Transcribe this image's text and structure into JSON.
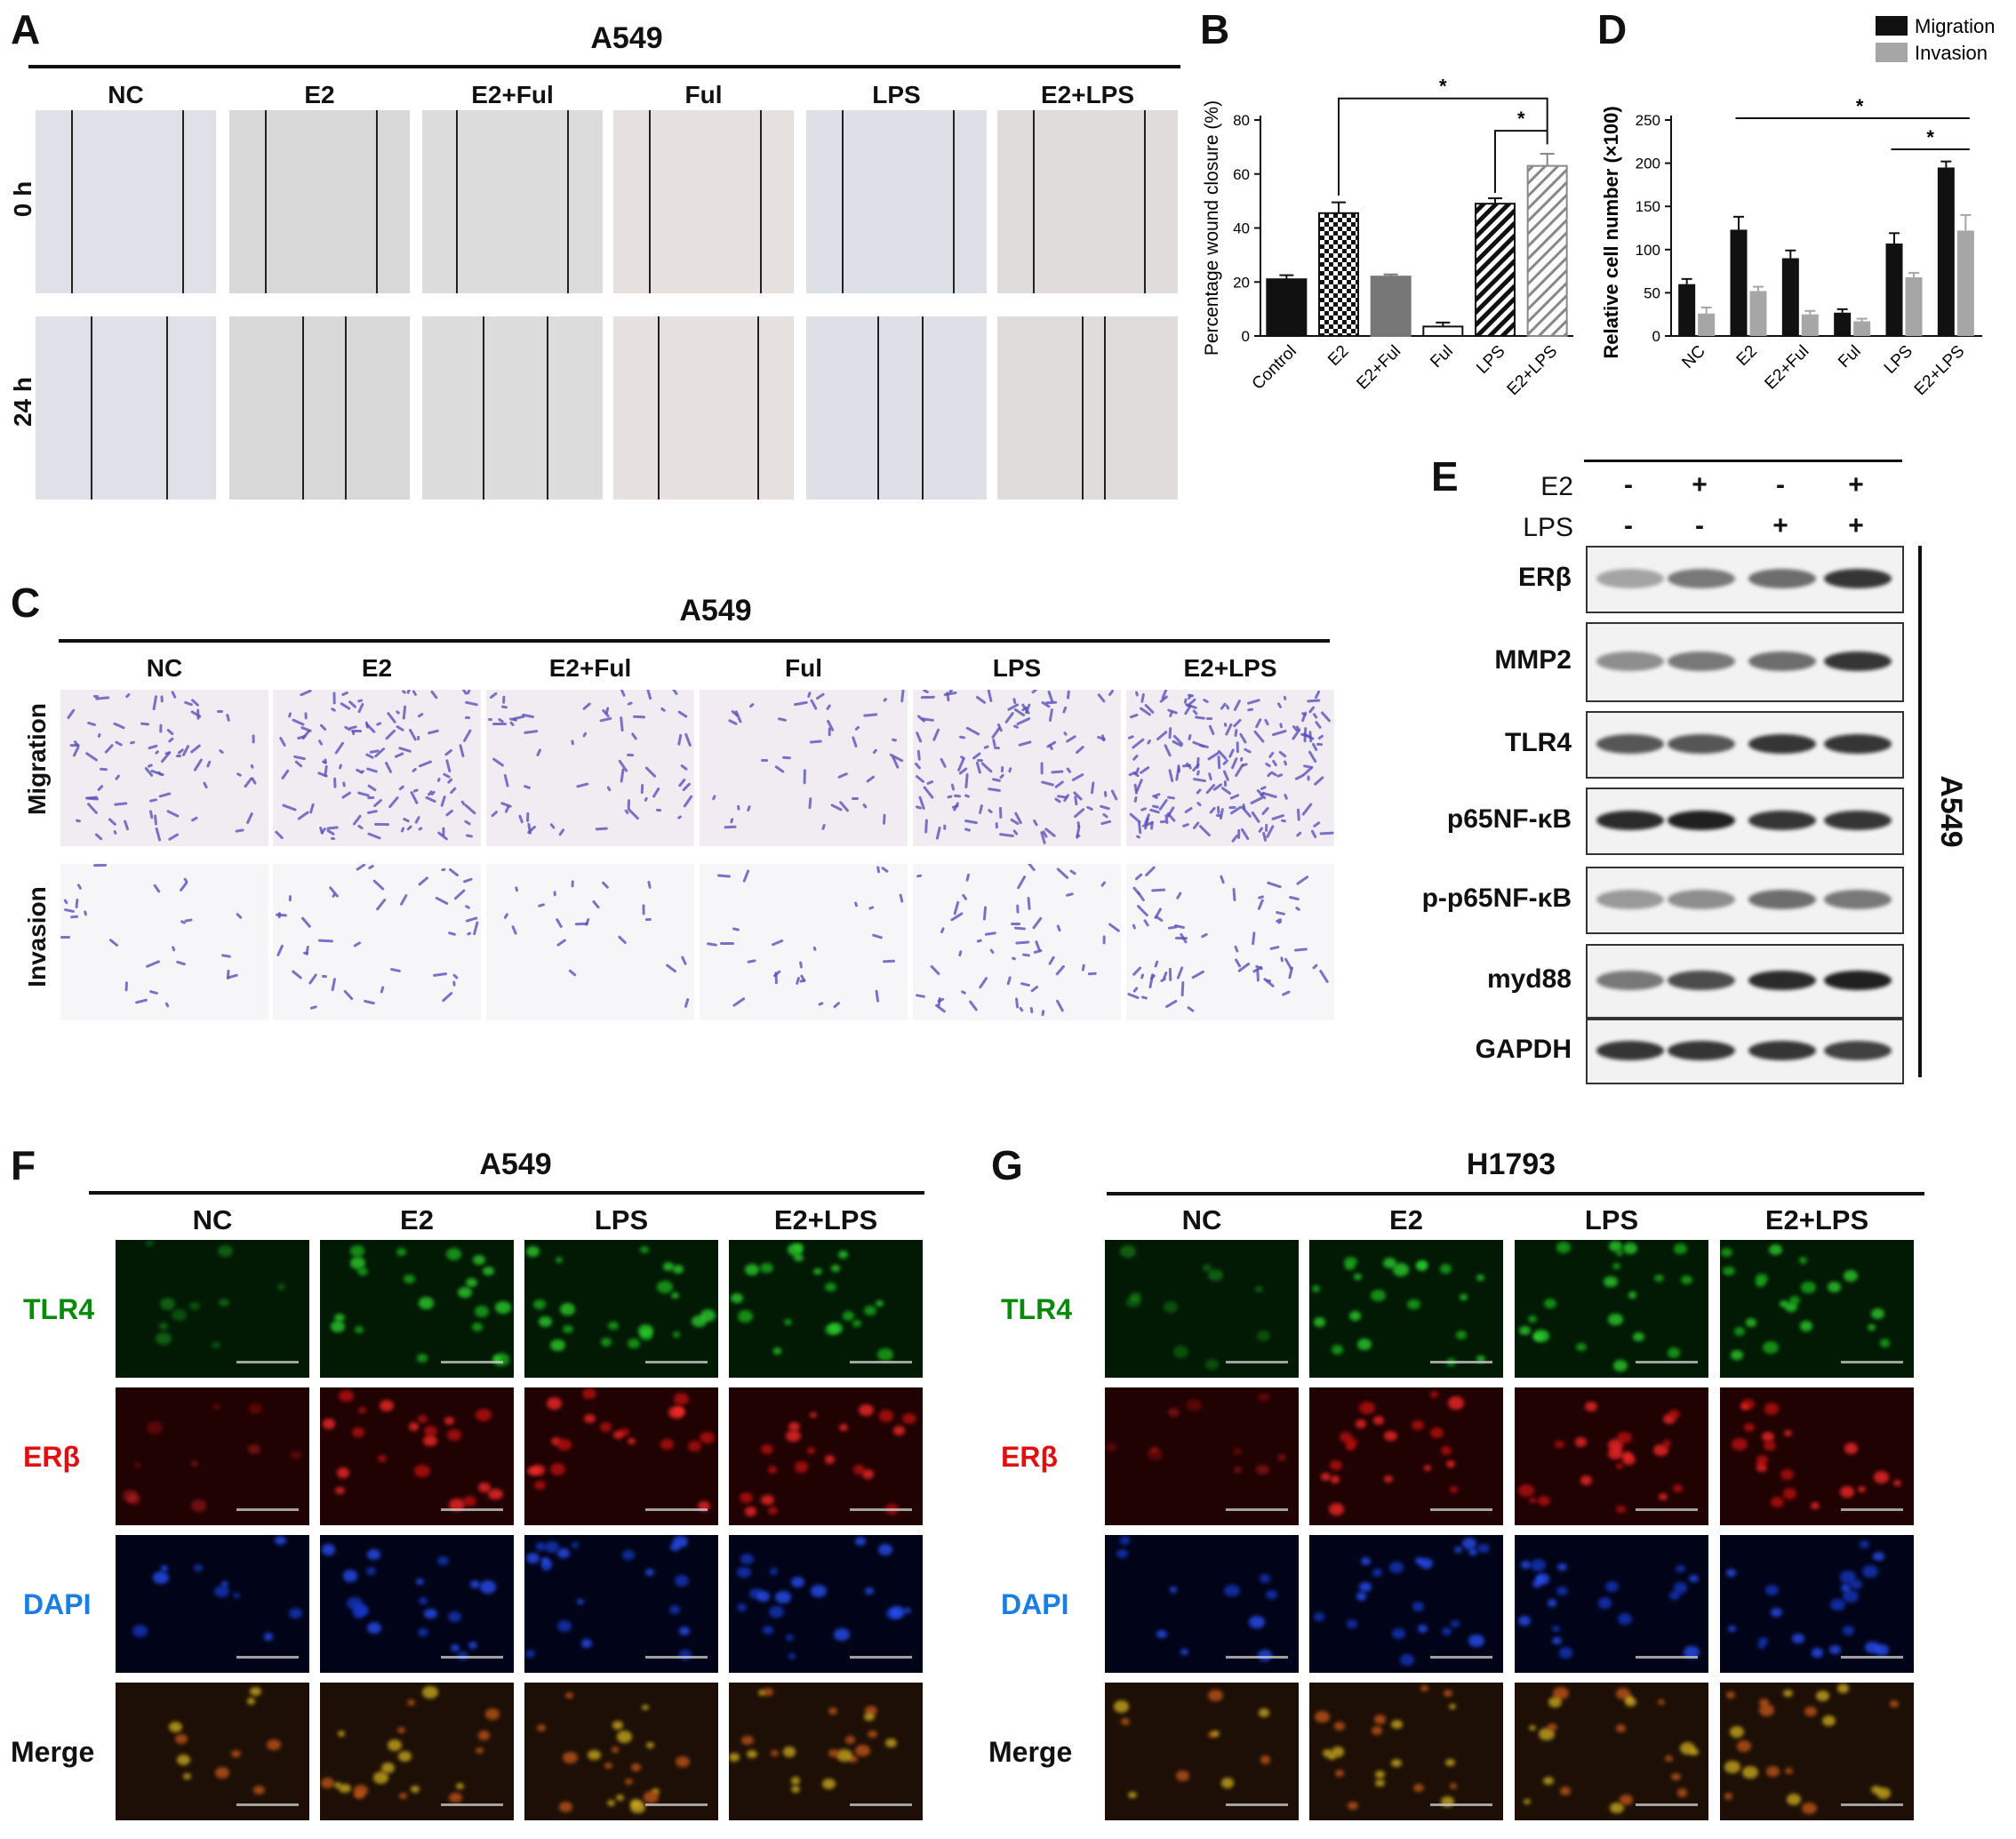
{
  "panel_a": {
    "label": "A",
    "title": "A549",
    "columns": [
      "NC",
      "E2",
      "E2+Ful",
      "Ful",
      "LPS",
      "E2+LPS"
    ],
    "rows": [
      "0 h",
      "24 h"
    ]
  },
  "panel_b": {
    "label": "B",
    "sig": [
      "*",
      "*"
    ],
    "colors": {
      "black": "#111111",
      "grey": "#777777"
    }
  },
  "panel_c": {
    "label": "C",
    "title": "A549",
    "columns": [
      "NC",
      "E2",
      "E2+Ful",
      "Ful",
      "LPS",
      "E2+LPS"
    ],
    "rows": [
      "Migration",
      "Invasion"
    ]
  },
  "panel_d": {
    "label": "D",
    "sig": [
      "*",
      "*"
    ],
    "colors": {
      "migration": "#111111",
      "invasion": "#a6a6a6"
    }
  },
  "panel_e": {
    "label": "E",
    "treatments": [
      {
        "name": "E2",
        "signs": [
          "-",
          "+",
          "-",
          "+"
        ]
      },
      {
        "name": "LPS",
        "signs": [
          "-",
          "-",
          "+",
          "+"
        ]
      }
    ],
    "proteins": [
      "ERβ",
      "MMP2",
      "TLR4",
      "p65NF-κB",
      "p-p65NF-κB",
      "myd88",
      "GAPDH"
    ],
    "cell_line": "A549"
  },
  "panel_f": {
    "label": "F",
    "title": "A549",
    "columns": [
      "NC",
      "E2",
      "LPS",
      "E2+LPS"
    ],
    "rows": [
      "TLR4",
      "ERβ",
      "DAPI",
      "Merge"
    ]
  },
  "panel_g": {
    "label": "G",
    "title": "H1793",
    "columns": [
      "NC",
      "E2",
      "LPS",
      "E2+LPS"
    ],
    "rows": [
      "TLR4",
      "ERβ",
      "DAPI",
      "Merge"
    ]
  },
  "stain_colors": {
    "TLR4": "#0a8a0a",
    "ERβ": "#e01010",
    "DAPI": "#1a7fe0",
    "Merge": "#111111"
  },
  "chart_data": [
    {
      "type": "bar",
      "categories": [
        "Control",
        "E2",
        "E2+Ful",
        "Ful",
        "LPS",
        "E2+LPS"
      ],
      "values": [
        21,
        45.5,
        22,
        3.5,
        49,
        63
      ],
      "errors": [
        1.5,
        4,
        0.8,
        1.5,
        2,
        4.5
      ],
      "ylabel": "Percentage wound closure (%)",
      "ylim": [
        0,
        80
      ],
      "yticks": [
        0,
        20,
        40,
        60,
        80
      ]
    },
    {
      "type": "bar",
      "categories": [
        "NC",
        "E2",
        "E2+Ful",
        "Ful",
        "LPS",
        "E2+LPS"
      ],
      "series": [
        {
          "name": "Migration",
          "values": [
            60,
            123,
            90,
            27,
            107,
            195
          ],
          "errors": [
            6,
            15,
            9,
            4,
            12,
            7
          ]
        },
        {
          "name": "Invasion",
          "values": [
            26,
            52,
            25,
            17,
            68,
            122
          ],
          "errors": [
            7,
            5,
            4,
            3,
            5,
            18
          ]
        }
      ],
      "ylabel": "Relative cell number (×100)",
      "ylim": [
        0,
        250
      ],
      "yticks": [
        0,
        50,
        100,
        150,
        200,
        250
      ],
      "legend": "top-right"
    }
  ]
}
